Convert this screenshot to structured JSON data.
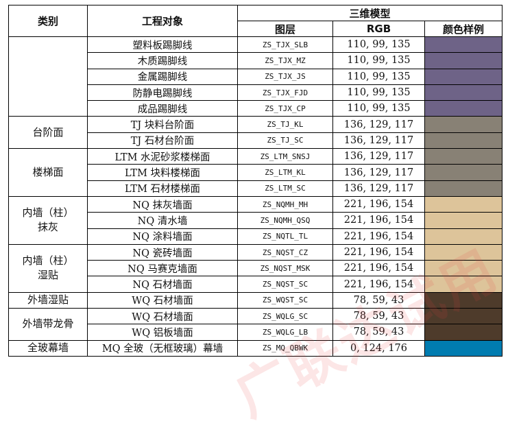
{
  "header": {
    "col_category": "类别",
    "col_object": "工程对象",
    "group_3d": "三维模型",
    "col_layer": "图层",
    "col_rgb": "RGB",
    "col_swatch": "颜色样例"
  },
  "groups": [
    {
      "category": "",
      "rows": [
        {
          "object": "塑料板踢脚线",
          "layer": "ZS_TJX_SLB",
          "rgb": "110, 99, 135",
          "color": "#6e6387"
        },
        {
          "object": "木质踢脚线",
          "layer": "ZS_TJX_MZ",
          "rgb": "110, 99, 135",
          "color": "#6e6387"
        },
        {
          "object": "金属踢脚线",
          "layer": "ZS_TJX_JS",
          "rgb": "110, 99, 135",
          "color": "#6e6387"
        },
        {
          "object": "防静电踢脚线",
          "layer": "ZS_TJX_FJD",
          "rgb": "110, 99, 135",
          "color": "#6e6387"
        },
        {
          "object": "成品踢脚线",
          "layer": "ZS_TJX_CP",
          "rgb": "110, 99, 135",
          "color": "#6e6387"
        }
      ]
    },
    {
      "category": "台阶面",
      "rows": [
        {
          "object": "TJ 块料台阶面",
          "layer": "ZS_TJ_KL",
          "rgb": "136, 129, 117",
          "color": "#888175"
        },
        {
          "object": "TJ 石材台阶面",
          "layer": "ZS_TJ_SC",
          "rgb": "136, 129, 117",
          "color": "#888175"
        }
      ]
    },
    {
      "category": "楼梯面",
      "rows": [
        {
          "object": "LTM 水泥砂浆楼梯面",
          "layer": "ZS_LTM_SNSJ",
          "rgb": "136, 129, 117",
          "color": "#888175"
        },
        {
          "object": "LTM 块料楼梯面",
          "layer": "ZS_LTM_KL",
          "rgb": "136, 129, 117",
          "color": "#888175"
        },
        {
          "object": "LTM 石材楼梯面",
          "layer": "ZS_LTM_SC",
          "rgb": "136, 129, 117",
          "color": "#888175"
        }
      ]
    },
    {
      "category": "内墙（柱）\n抹灰",
      "rows": [
        {
          "object": "NQ 抹灰墙面",
          "layer": "ZS_NQMH_MH",
          "rgb": "221, 196, 154",
          "color": "#ddc49a"
        },
        {
          "object": "NQ 清水墙",
          "layer": "ZS_NQMH_QSQ",
          "rgb": "221, 196, 154",
          "color": "#ddc49a"
        },
        {
          "object": "NQ 涂料墙面",
          "layer": "ZS_NQTL_TL",
          "rgb": "221, 196, 154",
          "color": "#ddc49a"
        }
      ]
    },
    {
      "category": "内墙（柱）\n湿贴",
      "rows": [
        {
          "object": "NQ 瓷砖墙面",
          "layer": "ZS_NQST_CZ",
          "rgb": "221, 196, 154",
          "color": "#ddc49a"
        },
        {
          "object": "NQ 马赛克墙面",
          "layer": "ZS_NQST_MSK",
          "rgb": "221, 196, 154",
          "color": "#ddc49a"
        },
        {
          "object": "NQ 石材墙面",
          "layer": "ZS_NQST_SC",
          "rgb": "221, 196, 154",
          "color": "#ddc49a"
        }
      ]
    },
    {
      "category": "外墙湿贴",
      "rows": [
        {
          "object": "WQ 石材墙面",
          "layer": "ZS_WQST_SC",
          "rgb": "78, 59, 43",
          "color": "#4e3b2b"
        }
      ]
    },
    {
      "category": "外墙带龙骨",
      "rows": [
        {
          "object": "WQ 石材墙面",
          "layer": "ZS_WQLG_SC",
          "rgb": "78, 59, 43",
          "color": "#4e3b2b"
        },
        {
          "object": "WQ 铝板墙面",
          "layer": "ZS_WQLG_LB",
          "rgb": "78, 59, 43",
          "color": "#4e3b2b"
        }
      ]
    },
    {
      "category": "全玻幕墙",
      "rows": [
        {
          "object": "MQ 全玻（无框玻璃）幕墙",
          "layer": "ZS_MQ_QBWK",
          "rgb": "0, 124, 176",
          "color": "#007cb0"
        }
      ]
    }
  ],
  "watermark": "广联达试用"
}
